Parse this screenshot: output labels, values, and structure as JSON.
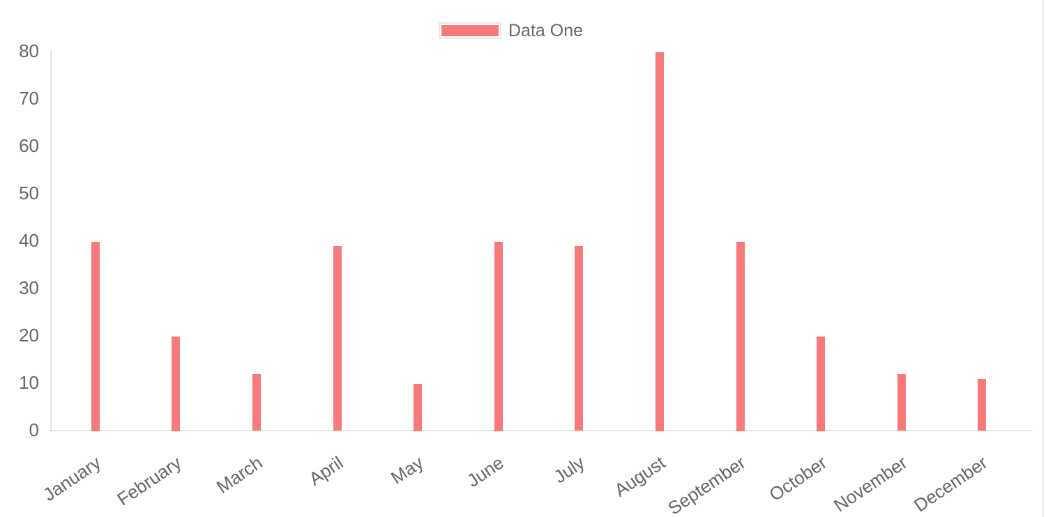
{
  "chart_data": {
    "type": "bar",
    "title": "",
    "legend": {
      "label": "Data One",
      "position": "top"
    },
    "categories": [
      "January",
      "February",
      "March",
      "April",
      "May",
      "June",
      "July",
      "August",
      "September",
      "October",
      "November",
      "December"
    ],
    "series": [
      {
        "name": "Data One",
        "values": [
          40,
          20,
          12,
          39,
          10,
          40,
          39,
          80,
          40,
          20,
          12,
          11
        ],
        "color": "#f87979"
      }
    ],
    "xlabel": "",
    "ylabel": "",
    "ylim": [
      0,
      80
    ],
    "ytick_labels": [
      "0",
      "10",
      "20",
      "30",
      "40",
      "50",
      "60",
      "70",
      "80"
    ],
    "grid": false,
    "x_label_rotation_deg": -34,
    "colors": {
      "bar": "#f87979",
      "tick_text": "#666666",
      "axis_line": "rgba(0,0,0,0.1)",
      "legend_text": "#666666",
      "legend_box_border": "#e7e7e7"
    }
  }
}
